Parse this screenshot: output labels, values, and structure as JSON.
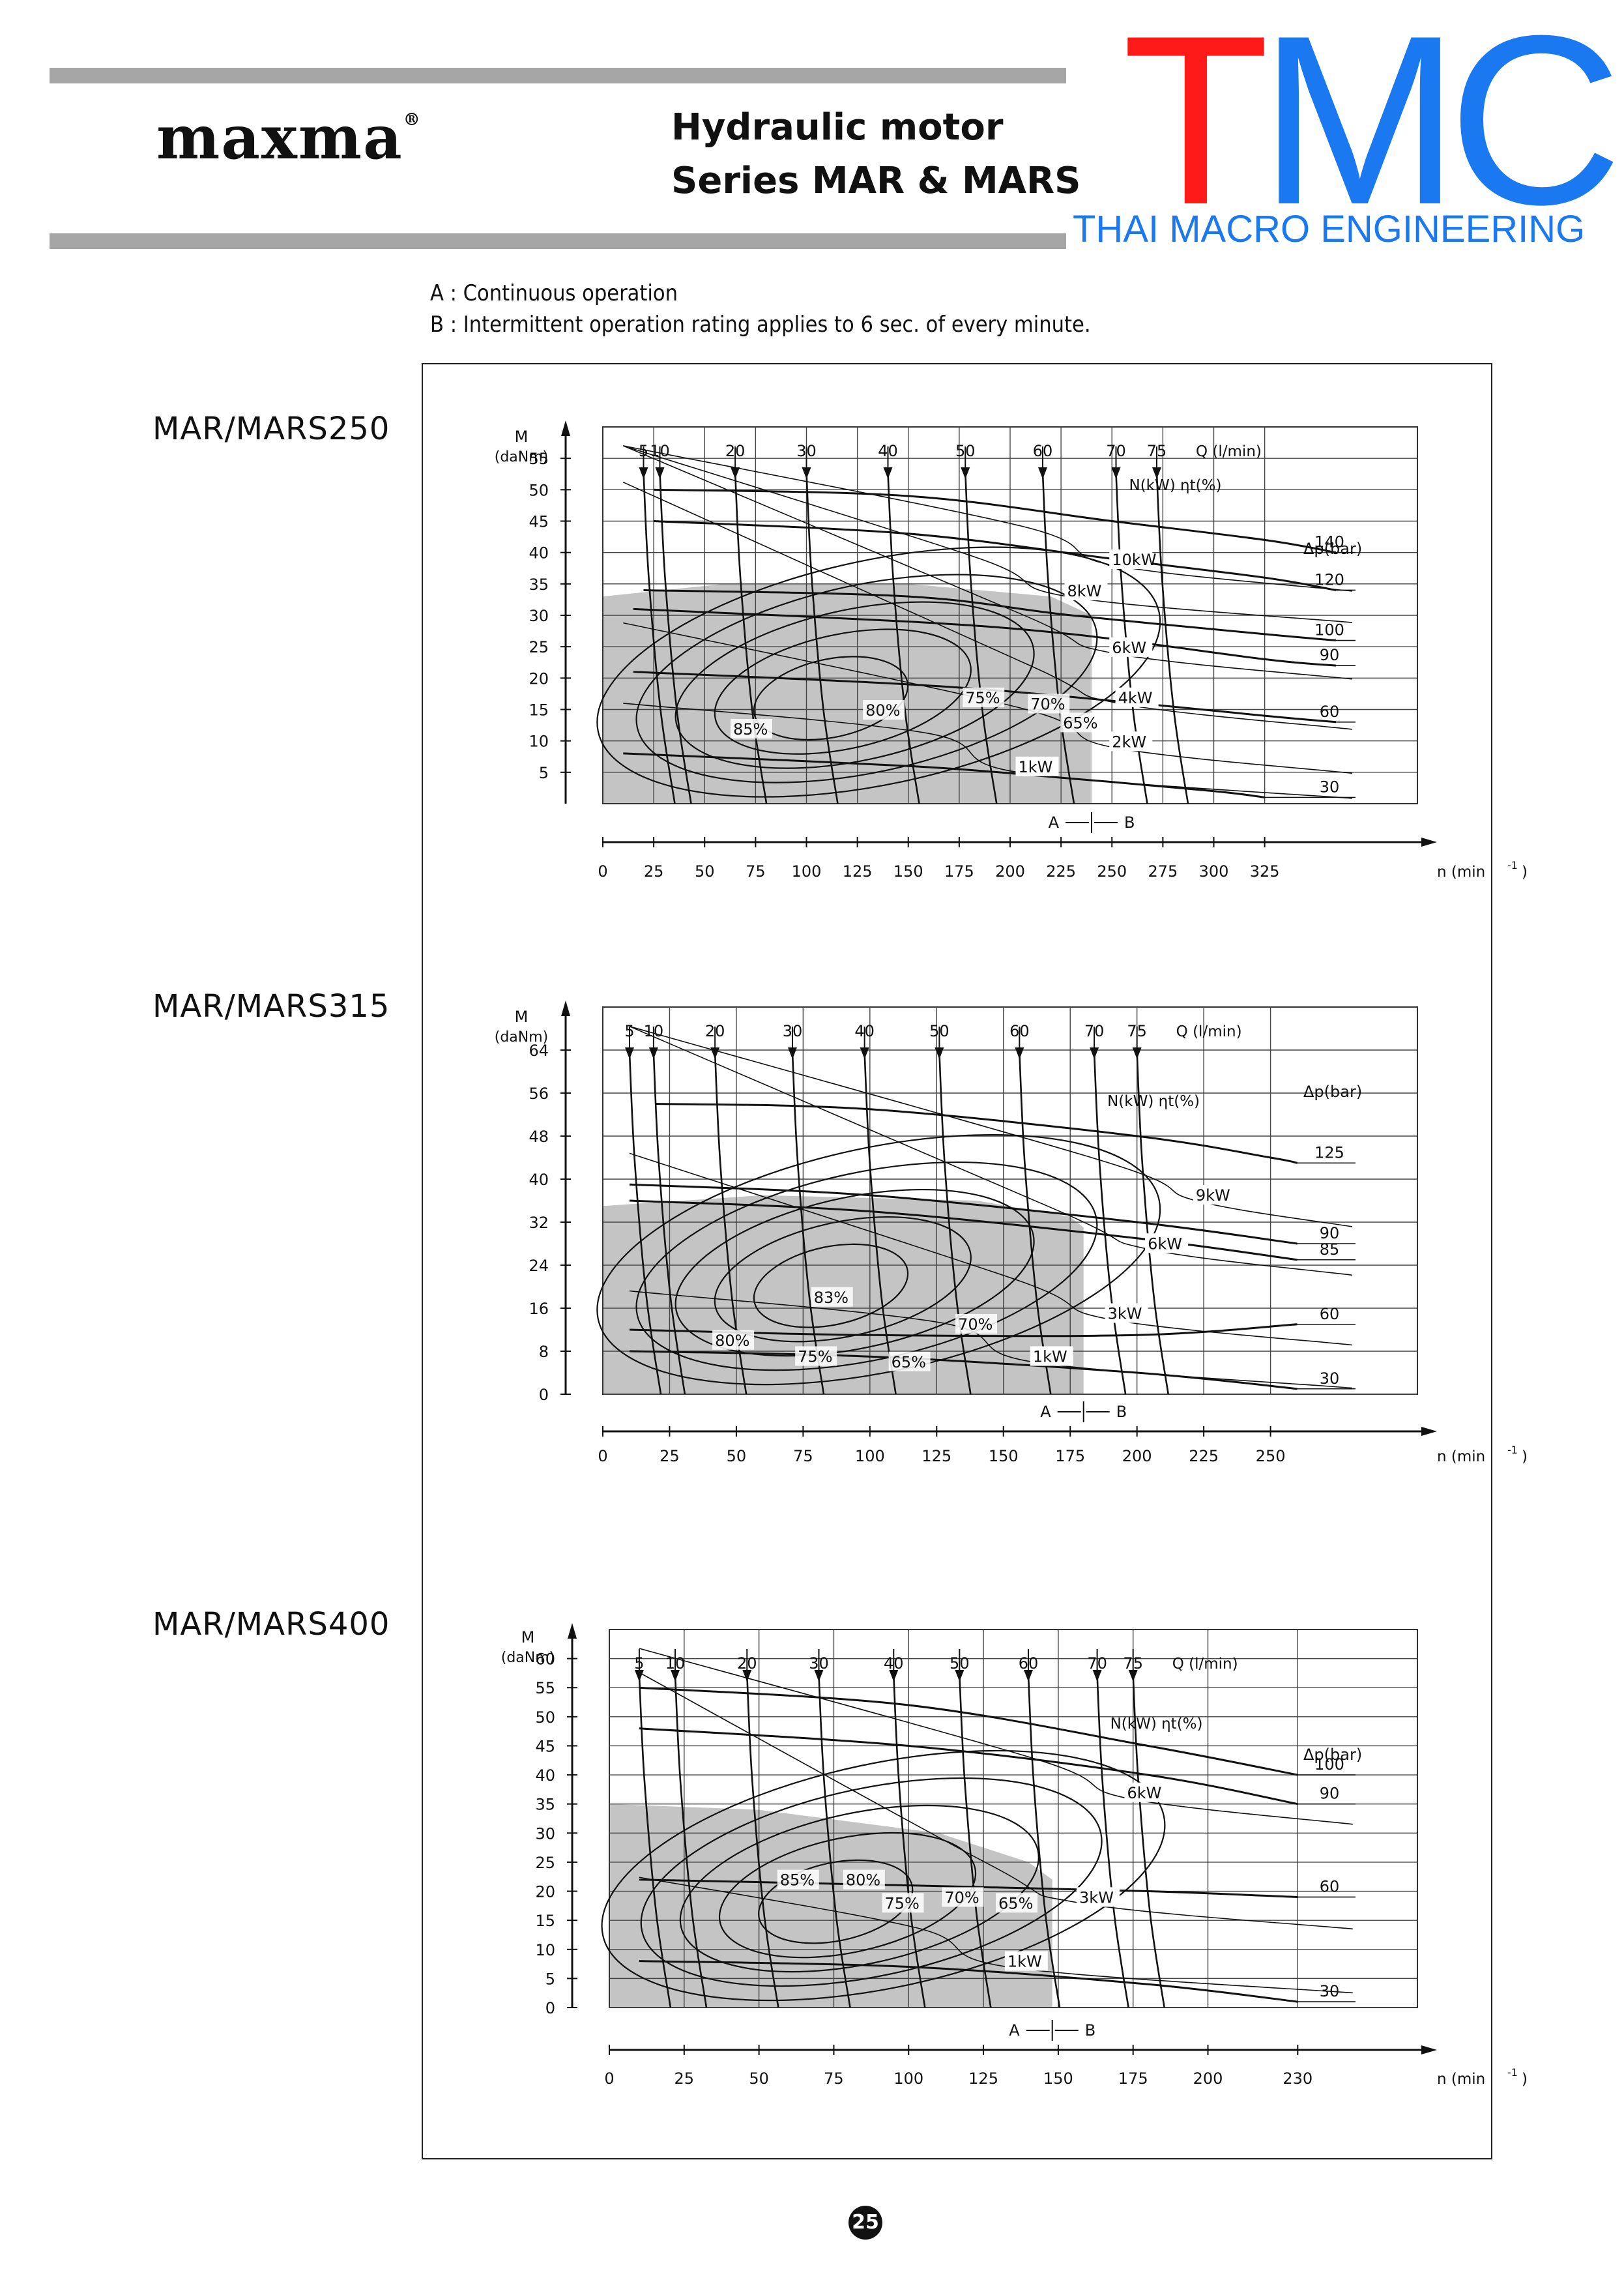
{
  "header": {
    "brand_name": "maxma",
    "brand_mark": "®",
    "title_line1": "Hydraulic motor",
    "title_line2": "Series MAR & MARS",
    "logo_t": "T",
    "logo_mc": "MC",
    "logo_tagline": "THAI MACRO ENGINEERING",
    "colors": {
      "logo_t": "#ff1a1a",
      "logo_mc": "#1a78f0",
      "rule": "#a6a6a6",
      "shade": "#c4c4c4"
    }
  },
  "notes": {
    "a": "A : Continuous operation",
    "b": "B : Intermittent operation rating applies to 6 sec. of every minute."
  },
  "page_number": "25",
  "chart_data": [
    {
      "type": "line",
      "model": "MAR/MARS250",
      "y_label_1": "M",
      "y_label_2": "(daNm)",
      "x_label": "n (min",
      "x_label_exp": "-1",
      "x_label_end": ")",
      "q_label": "Q (l/min)",
      "n_label": "N(kW)  ηt(%)",
      "dp_label": "Δp(bar)",
      "zone_label_a": "A",
      "zone_label_b": "B",
      "xlim": [
        0,
        400
      ],
      "ylim": [
        0,
        60
      ],
      "x_ticks": [
        "0",
        "25",
        "50",
        "75",
        "100",
        "125",
        "150",
        "175",
        "200",
        "225",
        "250",
        "275",
        "300",
        "325"
      ],
      "y_ticks": [
        "5",
        "10",
        "15",
        "20",
        "25",
        "30",
        "35",
        "40",
        "45",
        "50",
        "55"
      ],
      "q_ticks": [
        "5",
        "10",
        "20",
        "30",
        "40",
        "50",
        "60",
        "70",
        "75"
      ],
      "q_positions": [
        20,
        28,
        65,
        100,
        140,
        178,
        216,
        252,
        272
      ],
      "dp_labels": [
        "140",
        "120",
        "100",
        "90",
        "60",
        "30"
      ],
      "dp_lines": [
        {
          "name": "140",
          "points": [
            [
              25,
              50
            ],
            [
              150,
              49
            ],
            [
              250,
              45
            ],
            [
              325,
              42
            ],
            [
              360,
              40
            ]
          ]
        },
        {
          "name": "120",
          "points": [
            [
              25,
              45
            ],
            [
              150,
              43
            ],
            [
              250,
              39
            ],
            [
              325,
              36
            ],
            [
              360,
              34
            ]
          ]
        },
        {
          "name": "100",
          "points": [
            [
              20,
              34
            ],
            [
              150,
              33
            ],
            [
              230,
              30
            ],
            [
              325,
              27
            ],
            [
              360,
              26
            ]
          ]
        },
        {
          "name": "90",
          "points": [
            [
              15,
              31
            ],
            [
              150,
              29
            ],
            [
              230,
              27
            ],
            [
              325,
              23
            ],
            [
              360,
              22
            ]
          ]
        },
        {
          "name": "60",
          "points": [
            [
              15,
              21
            ],
            [
              150,
              19
            ],
            [
              230,
              17
            ],
            [
              325,
              14
            ],
            [
              360,
              13
            ]
          ]
        },
        {
          "name": "30",
          "points": [
            [
              10,
              8
            ],
            [
              150,
              6
            ],
            [
              230,
              4
            ],
            [
              300,
              2
            ],
            [
              325,
              1
            ]
          ]
        }
      ],
      "power_labels": [
        {
          "text": "10kW",
          "x": 250,
          "y": 38
        },
        {
          "text": "8kW",
          "x": 228,
          "y": 33
        },
        {
          "text": "6kW",
          "x": 250,
          "y": 24
        },
        {
          "text": "4kW",
          "x": 253,
          "y": 16
        },
        {
          "text": "2kW",
          "x": 250,
          "y": 9
        },
        {
          "text": "1kW",
          "x": 204,
          "y": 5
        }
      ],
      "efficiency_labels": [
        {
          "text": "85%",
          "x": 64,
          "y": 11
        },
        {
          "text": "80%",
          "x": 129,
          "y": 14
        },
        {
          "text": "75%",
          "x": 178,
          "y": 16
        },
        {
          "text": "70%",
          "x": 210,
          "y": 15
        },
        {
          "text": "65%",
          "x": 226,
          "y": 12
        }
      ],
      "shaded_continuous": [
        [
          0,
          0
        ],
        [
          0,
          33
        ],
        [
          60,
          35
        ],
        [
          150,
          35
        ],
        [
          220,
          33
        ],
        [
          240,
          30
        ],
        [
          240,
          0
        ]
      ],
      "ab_boundary_x": 240
    },
    {
      "type": "line",
      "model": "MAR/MARS315",
      "y_label_1": "M",
      "y_label_2": "(daNm)",
      "x_label": "n (min",
      "x_label_exp": "-1",
      "x_label_end": ")",
      "q_label": "Q (l/min)",
      "n_label": "N(kW)  ηt(%)",
      "dp_label": "Δp(bar)",
      "zone_label_a": "A",
      "zone_label_b": "B",
      "xlim": [
        0,
        305
      ],
      "ylim": [
        0,
        72
      ],
      "x_ticks": [
        "0",
        "25",
        "50",
        "75",
        "100",
        "125",
        "150",
        "175",
        "200",
        "225",
        "250"
      ],
      "y_ticks": [
        "0",
        "8",
        "16",
        "24",
        "32",
        "40",
        "48",
        "56",
        "64"
      ],
      "q_ticks": [
        "5",
        "10",
        "20",
        "30",
        "40",
        "50",
        "60",
        "70",
        "75"
      ],
      "q_positions": [
        10,
        19,
        42,
        71,
        98,
        126,
        156,
        184,
        200
      ],
      "dp_labels": [
        "125",
        "90",
        "85",
        "60",
        "30"
      ],
      "dp_lines": [
        {
          "name": "125",
          "points": [
            [
              20,
              54
            ],
            [
              100,
              53
            ],
            [
              200,
              48
            ],
            [
              250,
              44
            ],
            [
              260,
              43
            ]
          ]
        },
        {
          "name": "90",
          "points": [
            [
              10,
              39
            ],
            [
              100,
              37
            ],
            [
              200,
              32
            ],
            [
              260,
              28
            ]
          ]
        },
        {
          "name": "85",
          "points": [
            [
              10,
              36
            ],
            [
              100,
              34
            ],
            [
              200,
              29
            ],
            [
              260,
              25
            ]
          ]
        },
        {
          "name": "60",
          "points": [
            [
              10,
              12
            ],
            [
              100,
              11
            ],
            [
              200,
              11
            ],
            [
              260,
              13
            ]
          ]
        },
        {
          "name": "30",
          "points": [
            [
              10,
              8
            ],
            [
              100,
              7
            ],
            [
              200,
              4
            ],
            [
              260,
              1
            ]
          ]
        }
      ],
      "power_labels": [
        {
          "text": "9kW",
          "x": 222,
          "y": 36
        },
        {
          "text": "6kW",
          "x": 204,
          "y": 27
        },
        {
          "text": "3kW",
          "x": 189,
          "y": 14
        },
        {
          "text": "1kW",
          "x": 161,
          "y": 6
        }
      ],
      "efficiency_labels": [
        {
          "text": "83%",
          "x": 79,
          "y": 17
        },
        {
          "text": "80%",
          "x": 42,
          "y": 9
        },
        {
          "text": "75%",
          "x": 73,
          "y": 6
        },
        {
          "text": "65%",
          "x": 108,
          "y": 5
        },
        {
          "text": "70%",
          "x": 133,
          "y": 12
        }
      ],
      "shaded_continuous": [
        [
          0,
          0
        ],
        [
          0,
          35
        ],
        [
          60,
          37
        ],
        [
          140,
          36
        ],
        [
          175,
          33
        ],
        [
          180,
          31
        ],
        [
          180,
          0
        ]
      ],
      "ab_boundary_x": 180
    },
    {
      "type": "line",
      "model": "MAR/MARS400",
      "y_label_1": "M",
      "y_label_2": "(daNm)",
      "x_label": "n (min",
      "x_label_exp": "-1",
      "x_label_end": ")",
      "q_label": "Q (l/min)",
      "n_label": "N(kW)  ηt(%)",
      "dp_label": "Δp(bar)",
      "zone_label_a": "A",
      "zone_label_b": "B",
      "xlim": [
        0,
        270
      ],
      "ylim": [
        0,
        65
      ],
      "x_ticks": [
        "0",
        "25",
        "50",
        "75",
        "100",
        "125",
        "150",
        "175",
        "200",
        "230"
      ],
      "y_ticks": [
        "0",
        "5",
        "10",
        "15",
        "20",
        "25",
        "30",
        "35",
        "40",
        "45",
        "50",
        "55",
        "60"
      ],
      "q_ticks": [
        "5",
        "10",
        "20",
        "30",
        "40",
        "50",
        "60",
        "70",
        "75"
      ],
      "q_positions": [
        10,
        22,
        46,
        70,
        95,
        117,
        140,
        163,
        175
      ],
      "dp_labels": [
        "100",
        "90",
        "60",
        "30"
      ],
      "dp_lines": [
        {
          "name": "100",
          "points": [
            [
              10,
              55
            ],
            [
              100,
              52
            ],
            [
              180,
              45
            ],
            [
              230,
              40
            ]
          ]
        },
        {
          "name": "90",
          "points": [
            [
              10,
              48
            ],
            [
              100,
              45
            ],
            [
              180,
              40
            ],
            [
              230,
              35
            ]
          ]
        },
        {
          "name": "60",
          "points": [
            [
              10,
              22
            ],
            [
              100,
              21
            ],
            [
              180,
              20
            ],
            [
              230,
              19
            ]
          ]
        },
        {
          "name": "30",
          "points": [
            [
              10,
              8
            ],
            [
              100,
              7
            ],
            [
              180,
              4
            ],
            [
              230,
              1
            ]
          ]
        }
      ],
      "power_labels": [
        {
          "text": "6kW",
          "x": 173,
          "y": 36
        },
        {
          "text": "3kW",
          "x": 157,
          "y": 18
        },
        {
          "text": "1kW",
          "x": 133,
          "y": 7
        }
      ],
      "efficiency_labels": [
        {
          "text": "85%",
          "x": 57,
          "y": 21
        },
        {
          "text": "80%",
          "x": 79,
          "y": 21
        },
        {
          "text": "75%",
          "x": 92,
          "y": 17
        },
        {
          "text": "70%",
          "x": 112,
          "y": 18
        },
        {
          "text": "65%",
          "x": 130,
          "y": 17
        }
      ],
      "shaded_continuous": [
        [
          0,
          0
        ],
        [
          0,
          35
        ],
        [
          50,
          34
        ],
        [
          110,
          30
        ],
        [
          140,
          25
        ],
        [
          148,
          22
        ],
        [
          148,
          0
        ]
      ],
      "ab_boundary_x": 148
    }
  ]
}
